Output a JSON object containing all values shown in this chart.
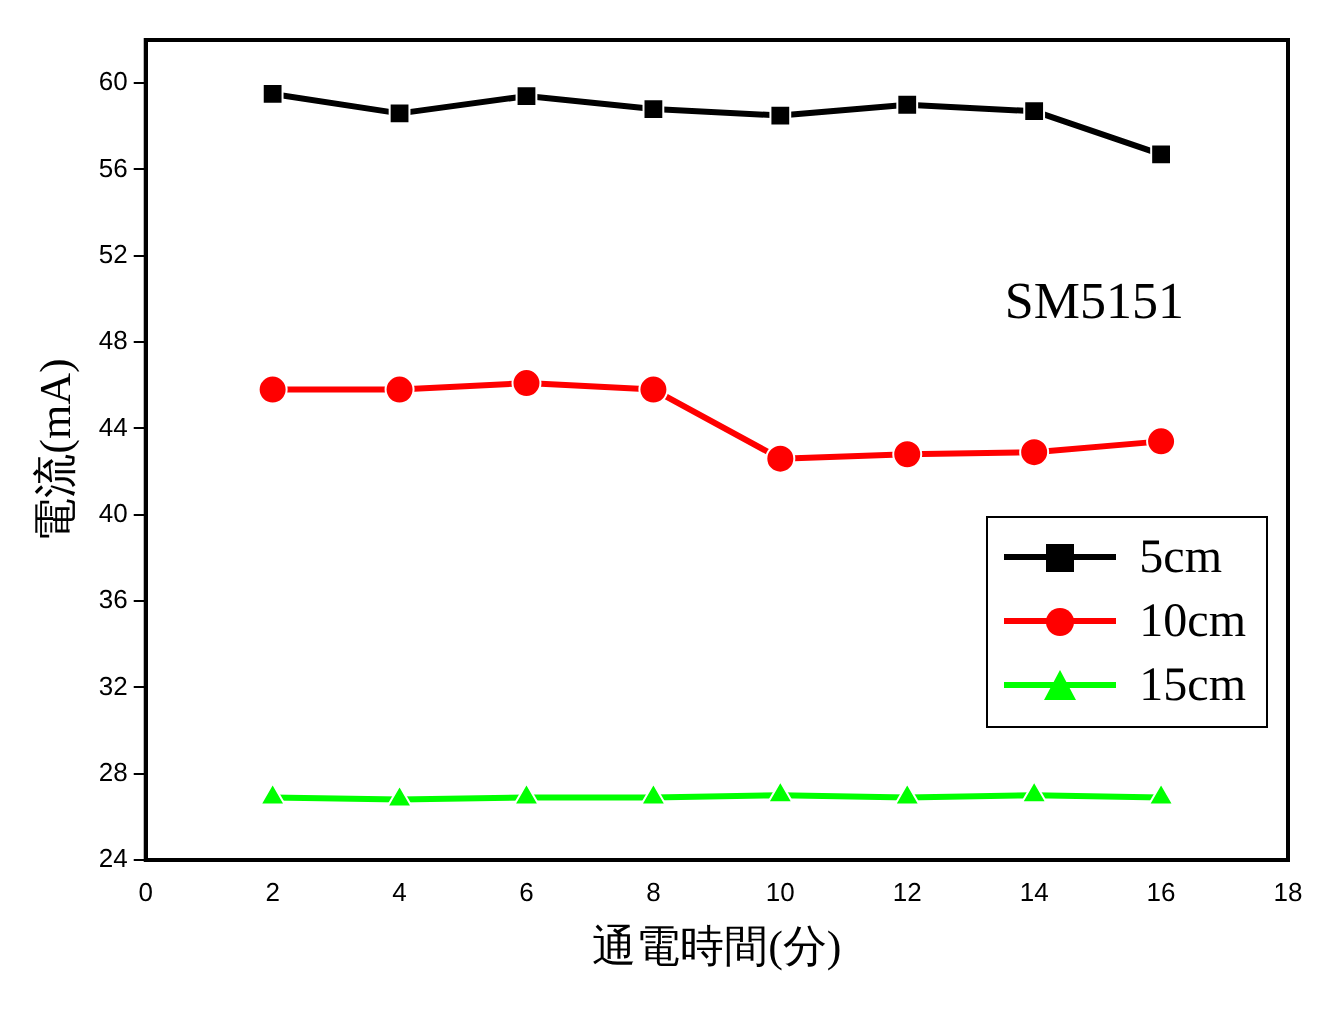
{
  "chart_data": {
    "type": "line",
    "xlabel": "通電時間(分)",
    "ylabel": "電流(mA)",
    "x": [
      2,
      4,
      6,
      8,
      10,
      12,
      14,
      16
    ],
    "series": [
      {
        "name": "5cm",
        "color": "#000000",
        "marker": "square",
        "values": [
          59.5,
          58.6,
          59.4,
          58.8,
          58.5,
          59.0,
          58.7,
          56.7
        ]
      },
      {
        "name": "10cm",
        "color": "#ff0000",
        "marker": "circle",
        "values": [
          45.8,
          45.8,
          46.1,
          45.8,
          42.6,
          42.8,
          42.9,
          43.4
        ]
      },
      {
        "name": "15cm",
        "color": "#00ff00",
        "marker": "triangle",
        "values": [
          26.9,
          26.8,
          26.9,
          26.9,
          27.0,
          26.9,
          27.0,
          26.9
        ]
      }
    ],
    "xlim": [
      0,
      18
    ],
    "xticks": [
      0,
      2,
      4,
      6,
      8,
      10,
      12,
      14,
      16,
      18
    ],
    "ylim": [
      24,
      62
    ],
    "yticks": [
      24,
      28,
      32,
      36,
      40,
      44,
      48,
      52,
      56,
      60
    ],
    "annotations": [
      "SM5151"
    ],
    "grid": false,
    "legend": "right",
    "line_style": "solid"
  }
}
